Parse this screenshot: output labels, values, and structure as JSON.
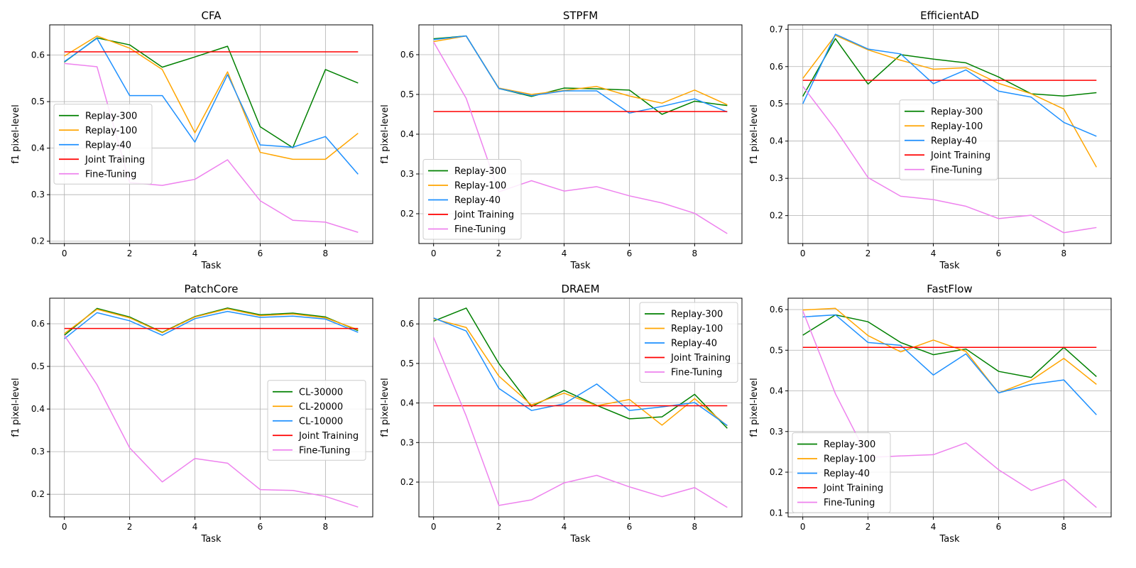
{
  "chart_data": [
    {
      "type": "line",
      "title": "CFA",
      "xlabel": "Task",
      "ylabel": "f1 pixel-level",
      "xlim": [
        -0.45,
        9.45
      ],
      "ylim": [
        0.195,
        0.665
      ],
      "xticks": [
        0,
        2,
        4,
        6,
        8
      ],
      "yticks": [
        0.2,
        0.3,
        0.4,
        0.5,
        0.6
      ],
      "legend": "center-left",
      "x": [
        0,
        1,
        2,
        3,
        4,
        5,
        6,
        7,
        8,
        9
      ],
      "series": [
        {
          "name": "Replay-300",
          "color": "#008000",
          "values": [
            0.585,
            0.637,
            0.622,
            0.574,
            0.596,
            0.619,
            0.446,
            0.401,
            0.569,
            0.54
          ]
        },
        {
          "name": "Replay-100",
          "color": "#ffa500",
          "values": [
            0.598,
            0.641,
            0.615,
            0.569,
            0.433,
            0.564,
            0.391,
            0.376,
            0.376,
            0.432
          ]
        },
        {
          "name": "Replay-40",
          "color": "#1e90ff",
          "values": [
            0.586,
            0.636,
            0.513,
            0.513,
            0.413,
            0.558,
            0.407,
            0.402,
            0.425,
            0.344
          ]
        },
        {
          "name": "Joint Training",
          "color": "#ff0000",
          "values": [
            0.607,
            0.607,
            0.607,
            0.607,
            0.607,
            0.607,
            0.607,
            0.607,
            0.607,
            0.607
          ]
        },
        {
          "name": "Fine-Tuning",
          "color": "#ee82ee",
          "values": [
            0.582,
            0.575,
            0.326,
            0.32,
            0.333,
            0.375,
            0.287,
            0.245,
            0.241,
            0.219
          ]
        }
      ]
    },
    {
      "type": "line",
      "title": "STPFM",
      "xlabel": "Task",
      "ylabel": "f1 pixel-level",
      "xlim": [
        -0.45,
        9.45
      ],
      "ylim": [
        0.125,
        0.675
      ],
      "xticks": [
        0,
        2,
        4,
        6,
        8
      ],
      "yticks": [
        0.2,
        0.3,
        0.4,
        0.5,
        0.6
      ],
      "legend": "lower-left",
      "x": [
        0,
        1,
        2,
        3,
        4,
        5,
        6,
        7,
        8,
        9
      ],
      "series": [
        {
          "name": "Replay-300",
          "color": "#008000",
          "values": [
            0.64,
            0.647,
            0.515,
            0.495,
            0.516,
            0.514,
            0.511,
            0.45,
            0.483,
            0.472
          ]
        },
        {
          "name": "Replay-100",
          "color": "#ffa500",
          "values": [
            0.633,
            0.647,
            0.516,
            0.5,
            0.51,
            0.52,
            0.496,
            0.478,
            0.511,
            0.474
          ]
        },
        {
          "name": "Replay-40",
          "color": "#1e90ff",
          "values": [
            0.638,
            0.647,
            0.515,
            0.497,
            0.509,
            0.509,
            0.453,
            0.47,
            0.489,
            0.456
          ]
        },
        {
          "name": "Joint Training",
          "color": "#ff0000",
          "values": [
            0.457,
            0.457,
            0.457,
            0.457,
            0.457,
            0.457,
            0.457,
            0.457,
            0.457,
            0.457
          ]
        },
        {
          "name": "Fine-Tuning",
          "color": "#ee82ee",
          "values": [
            0.632,
            0.49,
            0.255,
            0.283,
            0.257,
            0.268,
            0.245,
            0.227,
            0.201,
            0.15
          ]
        }
      ]
    },
    {
      "type": "line",
      "title": "EfficientAD",
      "xlabel": "Task",
      "ylabel": "f1 pixel-level",
      "xlim": [
        -0.45,
        9.45
      ],
      "ylim": [
        0.125,
        0.712
      ],
      "xticks": [
        0,
        2,
        4,
        6,
        8
      ],
      "yticks": [
        0.2,
        0.3,
        0.4,
        0.5,
        0.6,
        0.7
      ],
      "legend": "center-right",
      "x": [
        0,
        1,
        2,
        3,
        4,
        5,
        6,
        7,
        8,
        9
      ],
      "series": [
        {
          "name": "Replay-300",
          "color": "#008000",
          "values": [
            0.52,
            0.675,
            0.553,
            0.632,
            0.62,
            0.61,
            0.572,
            0.527,
            0.521,
            0.53
          ]
        },
        {
          "name": "Replay-100",
          "color": "#ffa500",
          "values": [
            0.568,
            0.684,
            0.645,
            0.617,
            0.593,
            0.597,
            0.555,
            0.527,
            0.486,
            0.33
          ]
        },
        {
          "name": "Replay-40",
          "color": "#1e90ff",
          "values": [
            0.5,
            0.687,
            0.647,
            0.634,
            0.554,
            0.591,
            0.534,
            0.518,
            0.45,
            0.413
          ]
        },
        {
          "name": "Joint Training",
          "color": "#ff0000",
          "values": [
            0.563,
            0.563,
            0.563,
            0.563,
            0.563,
            0.563,
            0.563,
            0.563,
            0.563,
            0.563
          ]
        },
        {
          "name": "Fine-Tuning",
          "color": "#ee82ee",
          "values": [
            0.547,
            0.432,
            0.302,
            0.252,
            0.243,
            0.225,
            0.192,
            0.201,
            0.154,
            0.168
          ]
        }
      ]
    },
    {
      "type": "line",
      "title": "PatchCore",
      "xlabel": "Task",
      "ylabel": "f1 pixel-level",
      "xlim": [
        -0.45,
        9.45
      ],
      "ylim": [
        0.147,
        0.66
      ],
      "xticks": [
        0,
        2,
        4,
        6,
        8
      ],
      "yticks": [
        0.2,
        0.3,
        0.4,
        0.5,
        0.6
      ],
      "legend": "center-right",
      "x": [
        0,
        1,
        2,
        3,
        4,
        5,
        6,
        7,
        8,
        9
      ],
      "series": [
        {
          "name": "CL-30000",
          "color": "#008000",
          "values": [
            0.573,
            0.636,
            0.616,
            0.58,
            0.617,
            0.637,
            0.621,
            0.625,
            0.616,
            0.584
          ]
        },
        {
          "name": "CL-20000",
          "color": "#ffa500",
          "values": [
            0.577,
            0.634,
            0.614,
            0.579,
            0.616,
            0.635,
            0.619,
            0.623,
            0.614,
            0.586
          ]
        },
        {
          "name": "CL-10000",
          "color": "#1e90ff",
          "values": [
            0.565,
            0.626,
            0.607,
            0.573,
            0.612,
            0.629,
            0.615,
            0.618,
            0.611,
            0.58
          ]
        },
        {
          "name": "Joint Training",
          "color": "#ff0000",
          "values": [
            0.589,
            0.589,
            0.589,
            0.589,
            0.589,
            0.589,
            0.589,
            0.589,
            0.589,
            0.589
          ]
        },
        {
          "name": "Fine-Tuning",
          "color": "#ee82ee",
          "values": [
            0.573,
            0.457,
            0.309,
            0.229,
            0.284,
            0.273,
            0.211,
            0.209,
            0.195,
            0.17
          ]
        }
      ]
    },
    {
      "type": "line",
      "title": "DRAEM",
      "xlabel": "Task",
      "ylabel": "f1 pixel-level",
      "xlim": [
        -0.45,
        9.45
      ],
      "ylim": [
        0.112,
        0.665
      ],
      "xticks": [
        0,
        2,
        4,
        6,
        8
      ],
      "yticks": [
        0.2,
        0.3,
        0.4,
        0.5,
        0.6
      ],
      "legend": "top-right",
      "x": [
        0,
        1,
        2,
        3,
        4,
        5,
        6,
        7,
        8,
        9
      ],
      "series": [
        {
          "name": "Replay-300",
          "color": "#008000",
          "values": [
            0.607,
            0.64,
            0.5,
            0.391,
            0.432,
            0.394,
            0.36,
            0.365,
            0.422,
            0.336
          ]
        },
        {
          "name": "Replay-100",
          "color": "#ffa500",
          "values": [
            0.613,
            0.591,
            0.468,
            0.395,
            0.425,
            0.393,
            0.409,
            0.344,
            0.411,
            0.342
          ]
        },
        {
          "name": "Replay-40",
          "color": "#1e90ff",
          "values": [
            0.615,
            0.582,
            0.437,
            0.381,
            0.398,
            0.448,
            0.381,
            0.39,
            0.401,
            0.343
          ]
        },
        {
          "name": "Joint Training",
          "color": "#ff0000",
          "values": [
            0.393,
            0.393,
            0.393,
            0.393,
            0.393,
            0.393,
            0.393,
            0.393,
            0.393,
            0.393
          ]
        },
        {
          "name": "Fine-Tuning",
          "color": "#ee82ee",
          "values": [
            0.566,
            0.367,
            0.141,
            0.155,
            0.198,
            0.217,
            0.188,
            0.163,
            0.186,
            0.136
          ]
        }
      ]
    },
    {
      "type": "line",
      "title": "FastFlow",
      "xlabel": "Task",
      "ylabel": "f1 pixel-level",
      "xlim": [
        -0.45,
        9.45
      ],
      "ylim": [
        0.09,
        0.628
      ],
      "xticks": [
        0,
        2,
        4,
        6,
        8
      ],
      "yticks": [
        0.1,
        0.2,
        0.3,
        0.4,
        0.5,
        0.6
      ],
      "legend": "lower-left",
      "x": [
        0,
        1,
        2,
        3,
        4,
        5,
        6,
        7,
        8,
        9
      ],
      "series": [
        {
          "name": "Replay-300",
          "color": "#008000",
          "values": [
            0.537,
            0.587,
            0.57,
            0.519,
            0.489,
            0.503,
            0.448,
            0.433,
            0.507,
            0.435
          ]
        },
        {
          "name": "Replay-100",
          "color": "#ffa500",
          "values": [
            0.599,
            0.603,
            0.536,
            0.496,
            0.525,
            0.497,
            0.395,
            0.426,
            0.48,
            0.416
          ]
        },
        {
          "name": "Replay-40",
          "color": "#1e90ff",
          "values": [
            0.582,
            0.587,
            0.519,
            0.512,
            0.439,
            0.491,
            0.395,
            0.416,
            0.427,
            0.341
          ]
        },
        {
          "name": "Joint Training",
          "color": "#ff0000",
          "values": [
            0.507,
            0.507,
            0.507,
            0.507,
            0.507,
            0.507,
            0.507,
            0.507,
            0.507,
            0.507
          ]
        },
        {
          "name": "Fine-Tuning",
          "color": "#ee82ee",
          "values": [
            0.597,
            0.393,
            0.236,
            0.24,
            0.243,
            0.272,
            0.206,
            0.155,
            0.182,
            0.113
          ]
        }
      ]
    }
  ]
}
